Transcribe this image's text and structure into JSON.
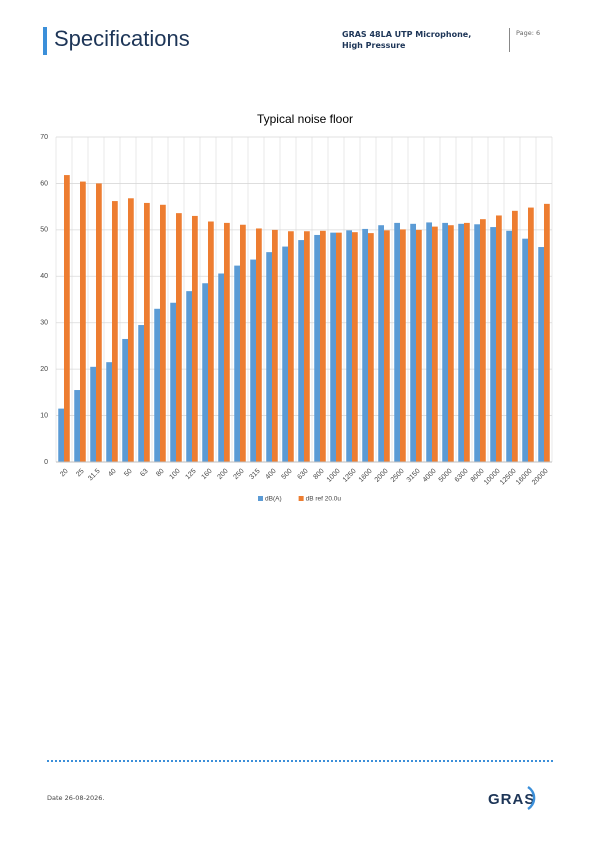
{
  "header": {
    "title": "Specifications",
    "product": "GRAS 48LA UTP Microphone, High Pressure",
    "page": "Page: 6"
  },
  "chart_data": {
    "type": "bar",
    "title": "Typical noise floor",
    "categories": [
      "20",
      "25",
      "31.5",
      "40",
      "50",
      "63",
      "80",
      "100",
      "125",
      "160",
      "200",
      "250",
      "315",
      "400",
      "500",
      "630",
      "800",
      "1000",
      "1250",
      "1600",
      "2000",
      "2500",
      "3150",
      "4000",
      "5000",
      "6300",
      "8000",
      "10000",
      "12500",
      "16000",
      "20000"
    ],
    "series": [
      {
        "name": "dB(A)",
        "color": "#5b9bd5",
        "values": [
          11.5,
          15.5,
          20.5,
          21.5,
          26.5,
          29.5,
          33,
          34.3,
          36.8,
          38.5,
          40.6,
          42.3,
          43.6,
          45.2,
          46.4,
          47.8,
          48.9,
          49.4,
          49.9,
          50.2,
          51,
          51.5,
          51.3,
          51.6,
          51.5,
          51.3,
          51.2,
          50.6,
          49.8,
          48.1,
          46.3
        ]
      },
      {
        "name": "dB ref 20.0u",
        "color": "#ed7d31",
        "values": [
          61.8,
          60.4,
          60,
          56.2,
          56.8,
          55.8,
          55.4,
          53.6,
          53,
          51.8,
          51.5,
          51.1,
          50.3,
          50,
          49.7,
          49.7,
          49.8,
          49.4,
          49.5,
          49.3,
          49.9,
          50.1,
          50,
          50.7,
          51,
          51.5,
          52.3,
          53.1,
          54.1,
          54.8,
          55.6
        ]
      }
    ],
    "ylim": [
      0,
      70
    ],
    "yticks": [
      0,
      10,
      20,
      30,
      40,
      50,
      60,
      70
    ],
    "grid": true,
    "legend": "bottom"
  },
  "footer": {
    "date": "Date 26-08-2026.",
    "logo": "GRAS"
  }
}
